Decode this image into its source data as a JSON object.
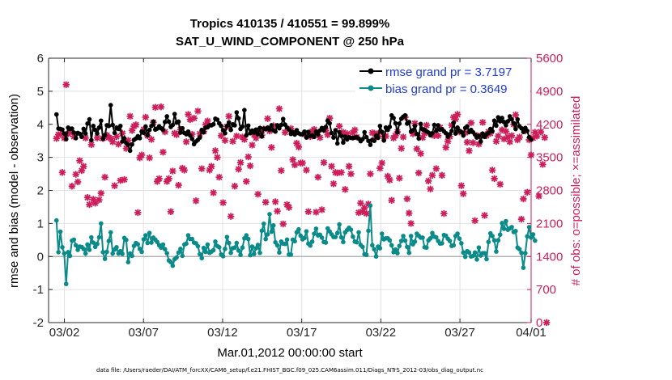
{
  "chart_data": {
    "type": "line",
    "title_line1": "Tropics 410135 / 410551 = 99.899%",
    "title_line2": "SAT_U_WIND_COMPONENT @ 250 hPa",
    "xlabel": "Mar.01,2012 00:00:00 start",
    "ylabel_left": "rmse and bias (model - observation)",
    "ylabel_right": "# of obs: o=possible; ×=assimilated",
    "footer": "data file: /Users/raeder/DAI/ATM_forcXX/CAM6_setup/f.e21.FHIST_BGC.f09_025.CAM6assim.011/Diags_NTrS_2012-03/obs_diag_output.nc",
    "xlim": [
      0.5,
      31.0
    ],
    "ylim_left": [
      -2,
      6
    ],
    "ylim_right": [
      0,
      5600
    ],
    "x_ticks": [
      1.5,
      6.5,
      11.5,
      16.5,
      21.5,
      26.5,
      31.0
    ],
    "x_tick_labels": [
      "03/02",
      "03/07",
      "03/12",
      "03/17",
      "03/22",
      "03/27",
      "04/01"
    ],
    "y_left_ticks": [
      "-2",
      "-1",
      "0",
      "1",
      "2",
      "3",
      "4",
      "5",
      "6"
    ],
    "y_right_ticks": [
      "0",
      "700",
      "1400",
      "2100",
      "2800",
      "3500",
      "4200",
      "4900",
      "5600"
    ],
    "legend": [
      {
        "label": "rmse grand pr = 3.7197",
        "color": "#000000"
      },
      {
        "label": "bias grand pr = 0.3649",
        "color": "#0b8a8a"
      }
    ],
    "series": [
      {
        "name": "rmse",
        "color": "#000000",
        "values": [
          4.3,
          3.87,
          3.86,
          3.84,
          3.72,
          3.55,
          3.9,
          3.86,
          3.87,
          3.75,
          3.58,
          3.74,
          3.71,
          3.62,
          3.86,
          3.72,
          4.02,
          4.15,
          3.52,
          3.95,
          3.83,
          3.72,
          3.9,
          4.11,
          3.56,
          3.67,
          3.97,
          3.95,
          4.58,
          3.98,
          3.74,
          3.9,
          3.86,
          3.95,
          3.48,
          3.58,
          3.43,
          3.38,
          3.2,
          3.39,
          3.53,
          3.57,
          3.64,
          3.58,
          3.78,
          3.74,
          3.93,
          3.67,
          3.83,
          3.95,
          4.08,
          3.84,
          3.87,
          3.94,
          3.88,
          3.83,
          4.07,
          4.24,
          4.08,
          3.92,
          3.98,
          4.31,
          4.05,
          4.08,
          3.75,
          3.88,
          3.74,
          3.7,
          3.78,
          3.66,
          3.56,
          3.4,
          3.48,
          3.53,
          3.6,
          3.83,
          3.76,
          3.9,
          3.91,
          3.97,
          3.97,
          4.0,
          4.17,
          4.14,
          4.03,
          3.95,
          3.82,
          3.73,
          3.95,
          4.06,
          3.83,
          4.0,
          3.97,
          4.36,
          4.18,
          3.86,
          3.93,
          4.43,
          3.67,
          3.96,
          3.73,
          3.81,
          3.75,
          3.84,
          3.7,
          3.89,
          3.63,
          3.87,
          3.86,
          3.9,
          3.84,
          3.97,
          3.82,
          3.78,
          3.97,
          3.88,
          3.98,
          4.16,
          3.99,
          3.9,
          3.84,
          3.71,
          3.77,
          3.69,
          3.82,
          3.73,
          3.7,
          3.7,
          3.78,
          3.6,
          3.77,
          3.65,
          3.67,
          3.62,
          3.78,
          3.69,
          3.81,
          3.89,
          3.82,
          3.92,
          4.11,
          4.03,
          3.74,
          3.6,
          3.82,
          3.42,
          3.76,
          3.65,
          3.45,
          3.63,
          3.54,
          3.61,
          3.59,
          3.58,
          3.6,
          3.61,
          3.57,
          3.49,
          3.55,
          3.76,
          3.61,
          3.5,
          3.38,
          3.53,
          3.5,
          3.66,
          3.59,
          3.95,
          3.77,
          3.51,
          3.9,
          3.83,
          3.92,
          4.27,
          4.19,
          4.03,
          3.76,
          4.02,
          4.17,
          4.23,
          4.27,
          4.02,
          4.07,
          3.78,
          3.82,
          3.95,
          3.71,
          3.57,
          4.01,
          3.85,
          3.83,
          3.79,
          3.75,
          3.67,
          3.73,
          3.98,
          3.8,
          3.97,
          3.84,
          3.85,
          3.79,
          3.73,
          3.62,
          3.7,
          3.8,
          4.05,
          3.72,
          3.9,
          3.8,
          3.76,
          3.66,
          3.89,
          3.94,
          3.76,
          3.83,
          3.76,
          3.69,
          3.6,
          3.65,
          3.48,
          3.72,
          3.62,
          3.7,
          3.74,
          3.86,
          3.79,
          4.11,
          3.96,
          4.21,
          4.09,
          4.19,
          4.07,
          3.97,
          4.09,
          4.24,
          4.15,
          4.03,
          3.86,
          4.15,
          3.94,
          3.88,
          3.77,
          3.89,
          3.8,
          3.61,
          3.54
        ]
      },
      {
        "name": "bias",
        "color": "#0b8a8a",
        "values": [
          1.09,
          0.13,
          0.75,
          0.28,
          0.09,
          -0.83,
          0.13,
          0.02,
          0.48,
          0.51,
          0.34,
          0.2,
          0.3,
          0.29,
          0.23,
          0.09,
          0.36,
          0.2,
          0.58,
          0.42,
          0.29,
          0.38,
          0.58,
          1.0,
          0.13,
          -0.07,
          0.14,
          0.47,
          0.73,
          0.09,
          0.21,
          0.28,
          0.09,
          0.16,
          0.08,
          0.56,
          0.5,
          -0.17,
          0.09,
          0.02,
          0.32,
          0.41,
          0.37,
          0.23,
          0.14,
          0.52,
          0.64,
          0.41,
          0.71,
          0.42,
          0.57,
          0.51,
          0.44,
          0.34,
          0.27,
          0.36,
          0.22,
          0.1,
          -0.12,
          -0.17,
          -0.28,
          -0.08,
          -0.03,
          0.12,
          0.23,
          0.02,
          0.36,
          0.39,
          0.64,
          0.53,
          0.53,
          0.42,
          0.4,
          0.31,
          0.07,
          -0.05,
          0.26,
          0.14,
          0.36,
          0.11,
          0.15,
          0.19,
          0.45,
          0.32,
          0.28,
          0.06,
          0.01,
          0.23,
          0.59,
          0.41,
          0.11,
          0.25,
          0.27,
          0.41,
          0.18,
          0.05,
          0.27,
          0.55,
          0.64,
          0.53,
          0.04,
          0.3,
          0.08,
          0.25,
          0.35,
          0.11,
          0.78,
          0.99,
          0.53,
          0.67,
          1.28,
          0.75,
          0.94,
          0.43,
          0.34,
          0.12,
          0.45,
          0.39,
          0.38,
          0.51,
          0.06,
          0.06,
          0.51,
          0.46,
          0.73,
          0.82,
          0.63,
          0.52,
          0.56,
          0.76,
          0.39,
          0.33,
          0.45,
          0.69,
          0.84,
          0.64,
          0.66,
          0.57,
          0.44,
          0.42,
          0.85,
          0.76,
          0.67,
          0.59,
          0.59,
          0.71,
          0.97,
          0.58,
          0.44,
          0.73,
          0.8,
          0.87,
          0.81,
          0.6,
          0.45,
          0.43,
          0.73,
          0.35,
          0.29,
          0.07,
          0.05,
          0.78,
          1.54,
          0.34,
          0.22,
          0.0,
          0.3,
          0.25,
          0.69,
          0.52,
          0.55,
          0.55,
          0.49,
          0.34,
          0.13,
          0.21,
          0.1,
          0.32,
          0.47,
          0.62,
          0.48,
          0.29,
          0.11,
          0.62,
          0.37,
          0.45,
          0.69,
          0.63,
          0.57,
          0.57,
          0.28,
          0.27,
          0.49,
          0.55,
          0.71,
          0.6,
          0.58,
          0.47,
          0.39,
          0.4,
          0.65,
          0.63,
          0.54,
          0.47,
          0.32,
          0.34,
          0.62,
          0.69,
          0.54,
          0.4,
          0.12,
          -0.01,
          0.16,
          0.12,
          0.0,
          0.02,
          0.12,
          -0.09,
          0.27,
          0.03,
          0.1,
          0.1,
          -0.08,
          0.44,
          0.7,
          0.62,
          0.49,
          0.15,
          0.49,
          0.66,
          1.01,
          0.84,
          1.07,
          0.81,
          0.85,
          0.89,
          0.74,
          0.77,
          0.27,
          0.22,
          0.11,
          -0.34,
          0.1,
          0.61,
          0.89,
          0.57,
          0.67,
          0.48
        ]
      },
      {
        "name": "obs count",
        "color": "#cc1e5a",
        "values": [
          3900,
          3980,
          3990,
          3180,
          3910,
          5040,
          4000,
          4030,
          2890,
          3940,
          3140,
          2980,
          3430,
          3220,
          3310,
          3910,
          2650,
          2500,
          3770,
          2610,
          2530,
          3910,
          2600,
          2740,
          3900,
          3080,
          3970,
          3920,
          3900,
          3830,
          2900,
          3940,
          3780,
          3010,
          4010,
          3030,
          3690,
          3860,
          4370,
          4070,
          4160,
          4190,
          2330,
          3490,
          3550,
          4090,
          4350,
          3960,
          3490,
          3880,
          4240,
          4560,
          2990,
          3050,
          4570,
          3610,
          4040,
          2990,
          3050,
          2350,
          3210,
          4010,
          3980,
          2910,
          4090,
          3270,
          3230,
          3830,
          4410,
          4300,
          3990,
          4330,
          2580,
          4480,
          4000,
          3260,
          4050,
          4190,
          4270,
          3230,
          3310,
          2750,
          3640,
          3500,
          3080,
          3960,
          2540,
          3860,
          4150,
          4370,
          2250,
          3840,
          2890,
          3950,
          3250,
          3390,
          3930,
          3880,
          2990,
          3510,
          3320,
          3760,
          3980,
          3910,
          2720,
          4010,
          3970,
          4100,
          2550,
          4320,
          4060,
          3710,
          4170,
          2560,
          2360,
          4530,
          3220,
          2090,
          4030,
          2500,
          2440,
          4110,
          3450,
          3340,
          3800,
          3720,
          3380,
          3380,
          3990,
          3230,
          2350,
          3940,
          4050,
          4090,
          2340,
          3080,
          3920,
          2390,
          3390,
          4070,
          3980,
          4330,
          3310,
          2940,
          3180,
          3170,
          4160,
          3180,
          4030,
          2820,
          4000,
          3310,
          3150,
          4020,
          4080,
          3930,
          2330,
          2530,
          2350,
          2430,
          2310,
          2510,
          3150,
          4020,
          4010,
          3930,
          4000,
          3270,
          3380,
          3940,
          3950,
          3100,
          3020,
          2590,
          3910,
          3960,
          4040,
          3060,
          3690,
          3930,
          4350,
          2620,
          2320,
          2100,
          4000,
          4220,
          3680,
          3170,
          3580,
          3920,
          4010,
          4180,
          3000,
          2830,
          3120,
          3960,
          3260,
          3960,
          4130,
          3120,
          2310,
          3710,
          3840,
          3940,
          4180,
          4350,
          4310,
          4410,
          4040,
          2900,
          2730,
          4020,
          3820,
          3640,
          4230,
          3810,
          2160,
          3960,
          3780,
          3960,
          4240,
          2270,
          3960,
          4040,
          4010,
          3230,
          3050,
          3840,
          3950,
          2930,
          4080,
          3890,
          4050,
          3930,
          3830,
          3960,
          4200,
          4400,
          3870,
          3930,
          2190,
          2620,
          4060,
          2760,
          3870,
          3550,
          3910,
          4030,
          3950,
          2680,
          4040,
          3350,
          3920,
          0
        ]
      }
    ]
  }
}
